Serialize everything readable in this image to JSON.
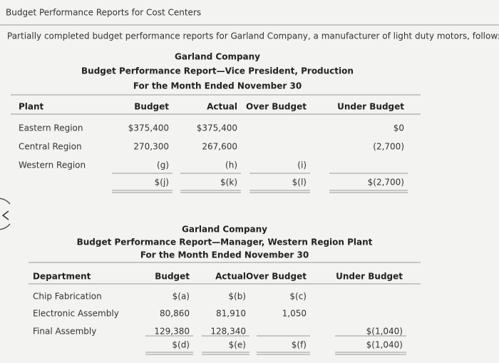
{
  "header": {
    "title": "Budget Performance Reports for Cost Centers",
    "intro": "Partially completed budget performance reports for Garland Company, a manufacturer of light duty motors, follow:"
  },
  "table1": {
    "company": "Garland Company",
    "title": "Budget Performance Report—Vice President, Production",
    "period": "For the Month Ended November 30",
    "columns": [
      "Plant",
      "Budget",
      "Actual",
      "Over Budget",
      "Under Budget"
    ],
    "rows": [
      [
        "Eastern Region",
        "$375,400",
        "$375,400",
        null,
        "$0"
      ],
      [
        "Central Region",
        "270,300",
        "267,600",
        null,
        "(2,700)"
      ],
      [
        "Western Region",
        "(g)",
        "(h)",
        "(i)",
        null
      ]
    ],
    "total": [
      null,
      "$(j)",
      "$(k)",
      "$(l)",
      "$(2,700)"
    ]
  },
  "table2": {
    "company": "Garland Company",
    "title": "Budget Performance Report—Manager, Western Region Plant",
    "period": "For the Month Ended November 30",
    "columns": [
      "Department",
      "Budget",
      "Actual",
      "Over Budget",
      "Under Budget"
    ],
    "rows": [
      [
        "Chip Fabrication",
        "$(a)",
        "$(b)",
        "$(c)",
        null
      ],
      [
        "Electronic Assembly",
        "80,860",
        "81,910",
        "1,050",
        null
      ],
      [
        "Final Assembly",
        "129,380",
        "128,340",
        null,
        "$(1,040)"
      ]
    ],
    "total": [
      null,
      "$(d)",
      "$(e)",
      "$(f)",
      "$(1,040)"
    ]
  }
}
